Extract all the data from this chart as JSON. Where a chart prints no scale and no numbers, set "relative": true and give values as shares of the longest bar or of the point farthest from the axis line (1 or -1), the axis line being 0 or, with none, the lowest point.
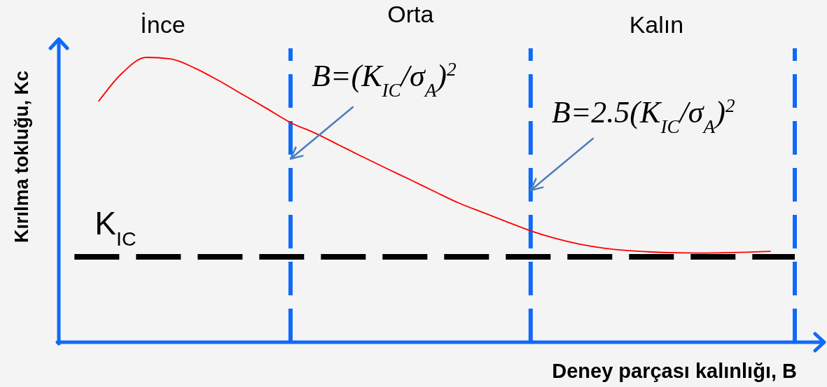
{
  "chart_data": {
    "type": "line",
    "relative": true,
    "grid": "x",
    "categories": [
      null,
      null,
      null,
      null,
      null,
      null,
      null,
      null,
      null,
      null,
      null,
      null,
      null,
      null,
      null,
      null,
      null,
      null,
      null,
      null,
      null,
      null,
      null,
      null,
      null,
      null,
      null,
      null,
      null,
      null,
      null
    ],
    "series": [
      {
        "color": "#ff0000",
        "values": [
          null,
          0.845,
          0.946,
          1,
          0.995,
          0.963,
          0.919,
          0.87,
          0.821,
          0.771,
          0.735,
          0.693,
          0.651,
          0.61,
          0.57,
          0.529,
          0.489,
          0.456,
          0.423,
          0.391,
          0.365,
          0.345,
          0.331,
          0.322,
          0.317,
          0.314,
          0.313,
          0.314,
          0.316,
          0.319,
          null
        ]
      },
      {
        "name": "K$_{IC}$",
        "color": "#000000",
        "line_style": "dashed",
        "values": [
          0.3,
          0.3,
          0.3,
          0.3,
          0.3,
          0.3,
          0.3,
          0.3,
          0.3,
          0.3,
          0.3,
          0.3,
          0.3,
          0.3,
          0.3,
          0.3,
          0.3,
          0.3,
          0.3,
          0.3,
          0.3,
          0.3,
          0.3,
          0.3,
          0.3,
          0.3,
          0.3,
          0.3,
          0.3,
          0.3,
          0.3
        ]
      }
    ],
    "xlabel": "Deney parçası kalınlığı, B",
    "ylabel": "Kırılma tokluğu, Kc",
    "annotations": [
      "İnce",
      "Orta",
      "Kalın",
      "B=(K$_{IC}$/σ$_{A}$)$^{2}$",
      "B=2.5(K$_{IC}$/σ$_{A}$)$^{2}$"
    ]
  }
}
